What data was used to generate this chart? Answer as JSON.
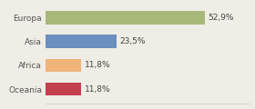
{
  "categories": [
    "Europa",
    "Asia",
    "Africa",
    "Oceania"
  ],
  "values": [
    52.9,
    23.5,
    11.8,
    11.8
  ],
  "labels": [
    "52,9%",
    "23,5%",
    "11,8%",
    "11,8%"
  ],
  "bar_colors": [
    "#a8b87a",
    "#6b8fbf",
    "#f0b47a",
    "#c04050"
  ],
  "background_color": "#f0ede6",
  "xlim": [
    0,
    68
  ],
  "bar_height": 0.55,
  "label_fontsize": 6.5,
  "ytick_fontsize": 6.5
}
